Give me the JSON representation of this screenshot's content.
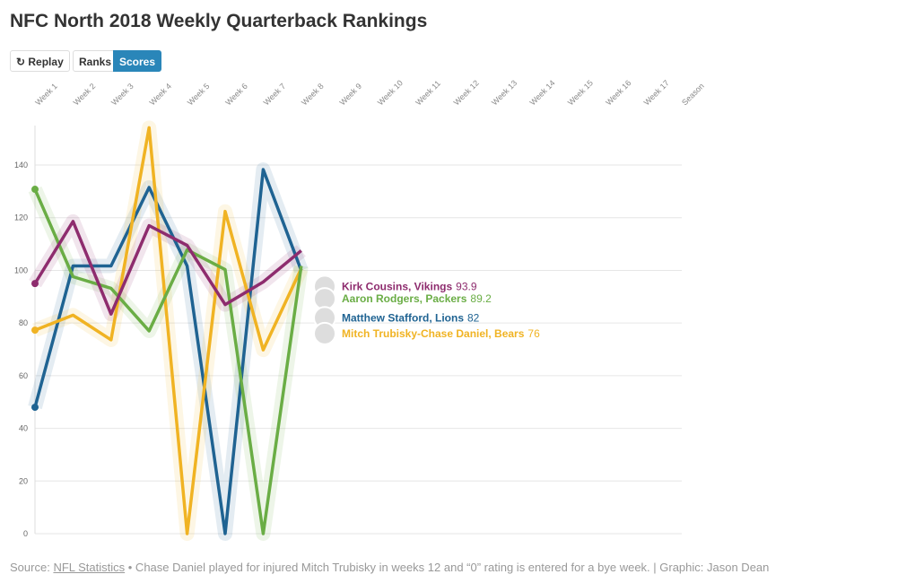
{
  "chart_data": {
    "type": "line",
    "title": "NFC North 2018 Weekly Quarterback Rankings",
    "buttons": [
      "Replay",
      "Ranks",
      "Scores"
    ],
    "categories": [
      "Week 1",
      "Week 2",
      "Week 3",
      "Week 4",
      "Week 5",
      "Week 6",
      "Week 7",
      "Week 8",
      "Week 9",
      "Week 10",
      "Week 11",
      "Week 12",
      "Week 13",
      "Week 14",
      "Week 15",
      "Week 16",
      "Week 17",
      "Season"
    ],
    "ylim": [
      0,
      155
    ],
    "yticks": [
      0,
      20,
      40,
      60,
      80,
      100,
      120,
      140
    ],
    "grid": true,
    "series": [
      {
        "name": "Matthew Stafford, Lions",
        "color": "#1f6392",
        "end_value": 82,
        "values": [
          48,
          101.7,
          101.7,
          131.5,
          101.7,
          0,
          138.3,
          100,
          null,
          null,
          null,
          null,
          null,
          null,
          null,
          null,
          null,
          null
        ]
      },
      {
        "name": "Mitch Trubisky-Chase Daniel, Bears",
        "color": "#f0b323",
        "end_value": 76,
        "values": [
          77.3,
          83,
          73.6,
          154.2,
          0,
          122.4,
          69.8,
          100.7,
          null,
          null,
          null,
          null,
          null,
          null,
          null,
          null,
          null,
          null
        ]
      },
      {
        "name": "Aaron Rodgers, Packers",
        "color": "#6aad45",
        "end_value": 89.2,
        "values": [
          130.8,
          97.6,
          93.2,
          77,
          107.8,
          100.3,
          0,
          101.7,
          null,
          null,
          null,
          null,
          null,
          null,
          null,
          null,
          null,
          null
        ]
      },
      {
        "name": "Kirk Cousins, Vikings",
        "color": "#8e2c6e",
        "end_value": 93.9,
        "values": [
          95,
          118.6,
          83.4,
          117,
          109.5,
          87,
          95.6,
          107.5,
          null,
          null,
          null,
          null,
          null,
          null,
          null,
          null,
          null,
          null
        ]
      }
    ],
    "source_prefix": "Source:",
    "source_link": "NFL Statistics",
    "source_note": "• Chase Daniel played for injured Mitch Trubisky in weeks 12 and “0” rating is entered for a bye week. | Graphic: Jason Dean"
  }
}
